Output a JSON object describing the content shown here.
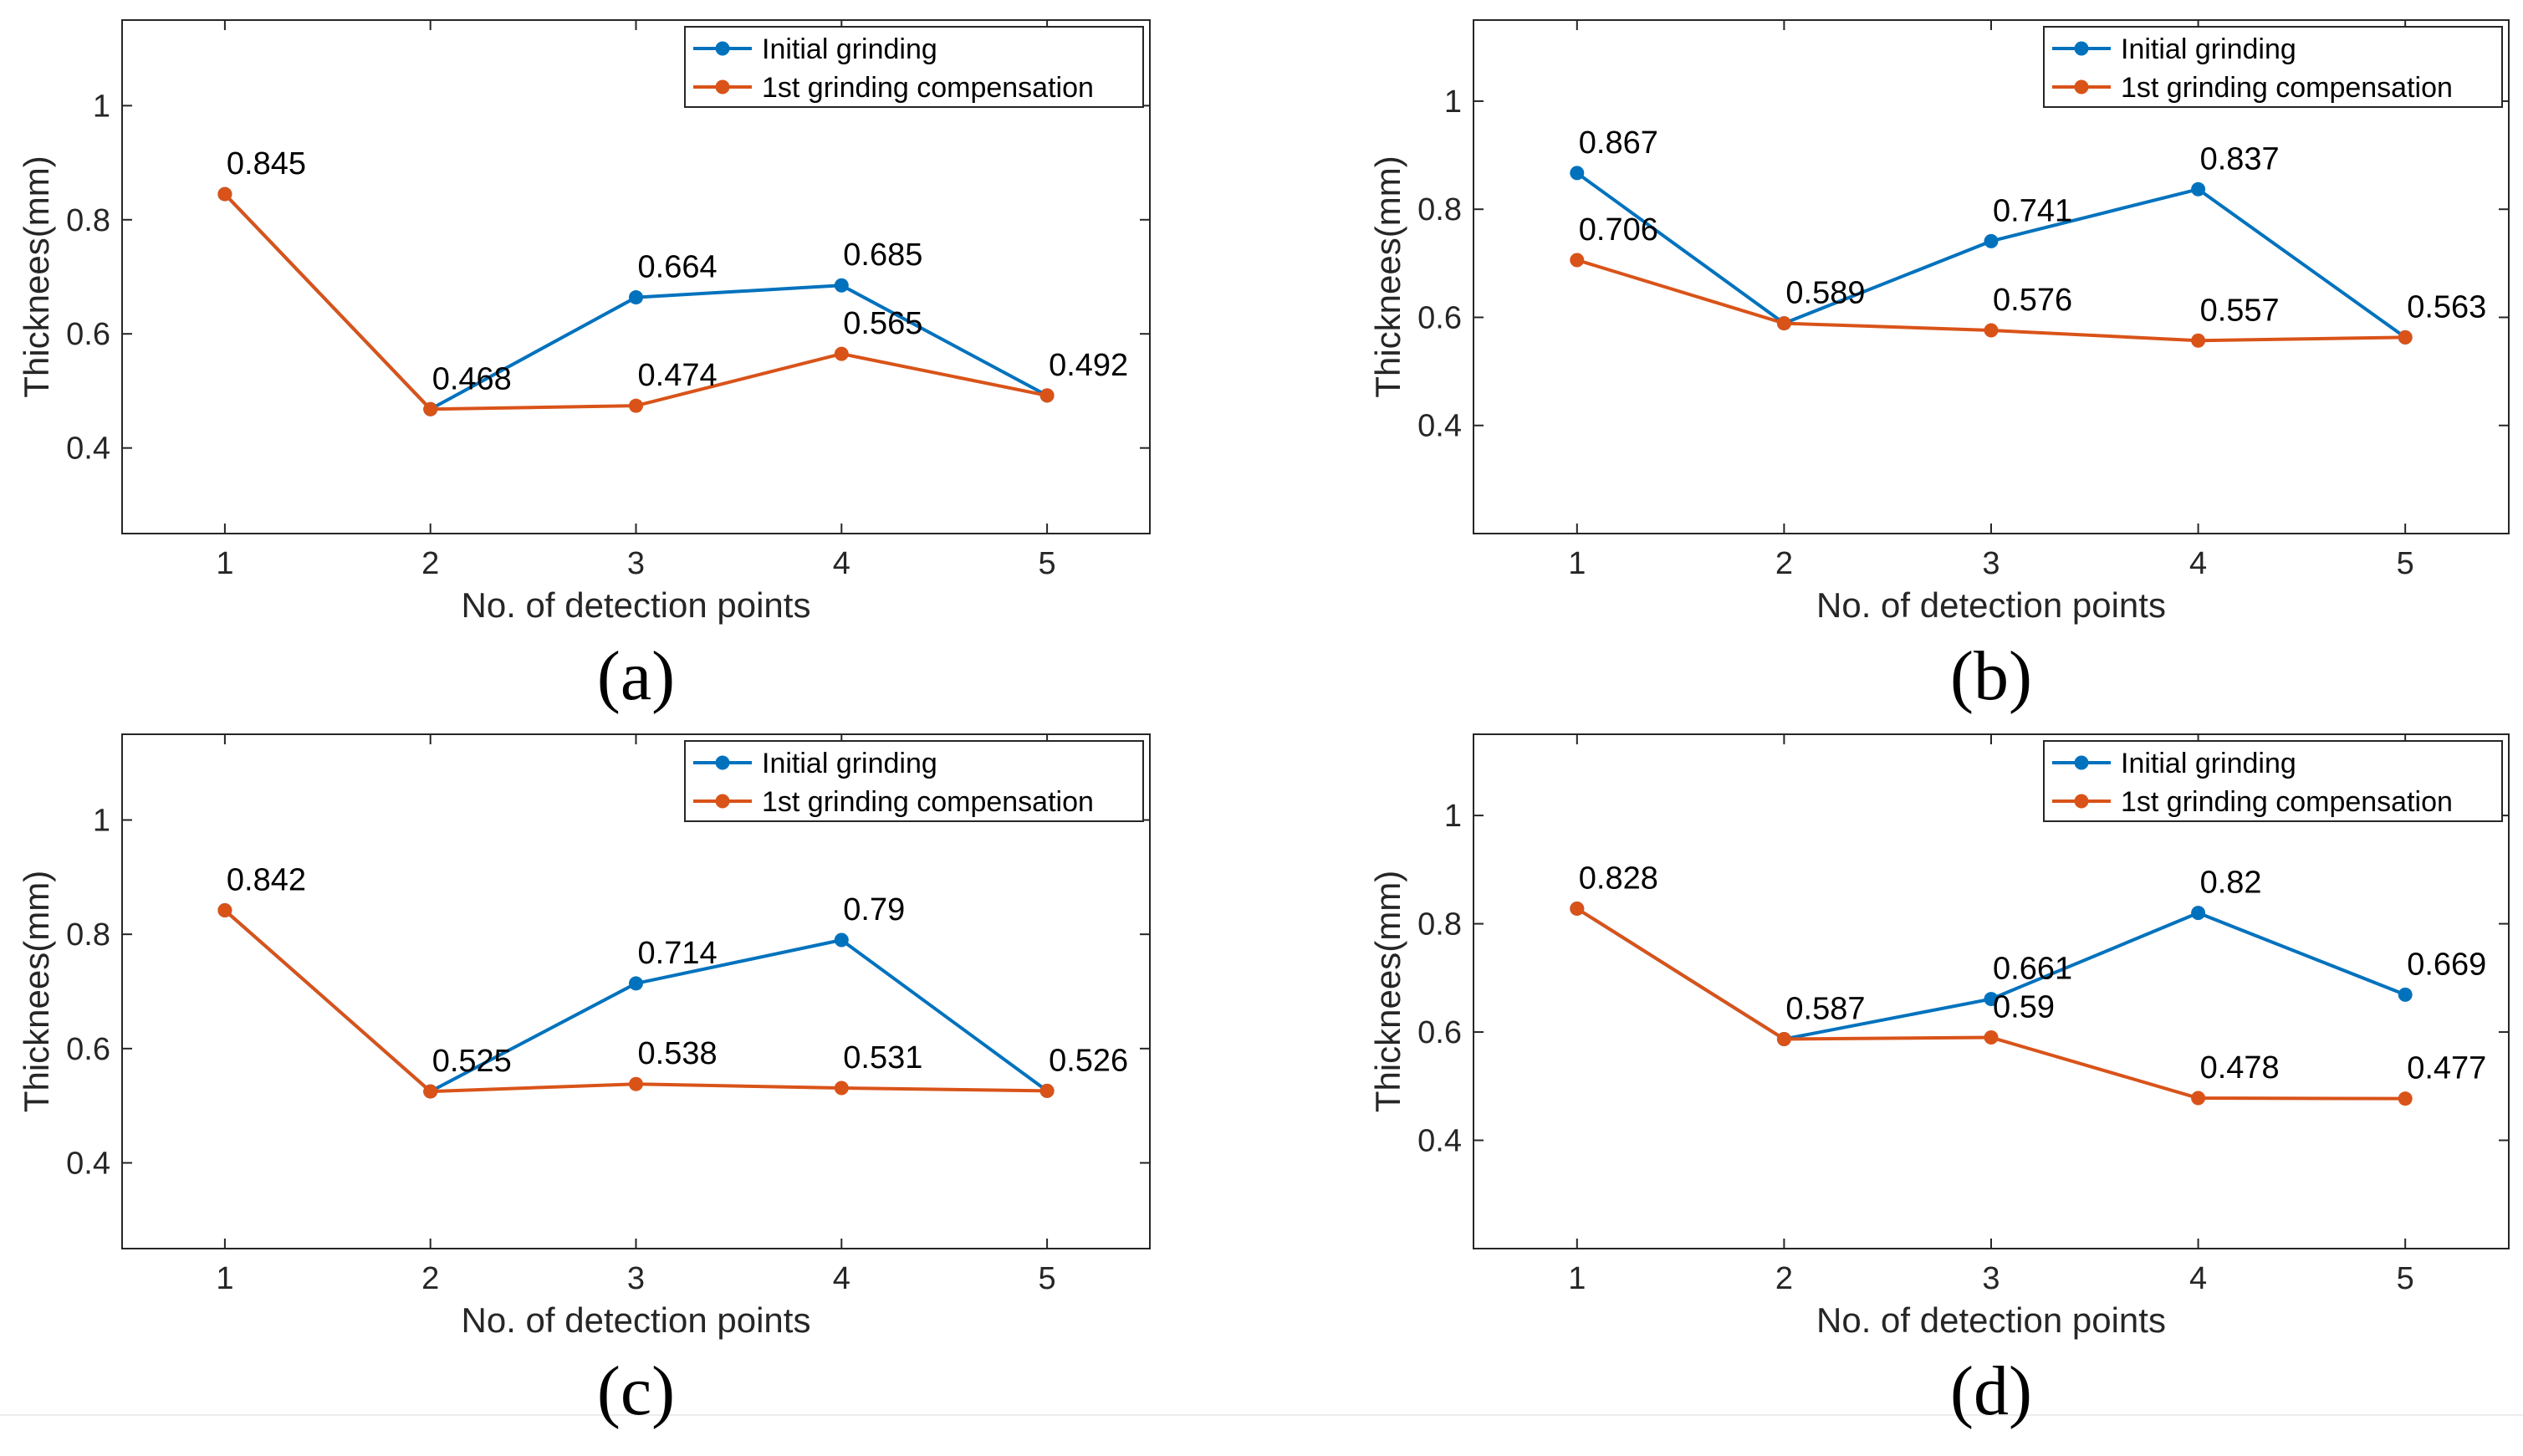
{
  "chart_data": [
    {
      "type": "line",
      "panel_label": "(a)",
      "xlabel": "No. of detection points",
      "ylabel": "Thicknees(mm)",
      "categories": [
        "1",
        "2",
        "3",
        "4",
        "5"
      ],
      "yticks": [
        "0.4",
        "0.6",
        "0.8",
        "1"
      ],
      "ylim": [
        0.25,
        1.15
      ],
      "xlim": [
        0.5,
        5.5
      ],
      "legend_position": "top-right",
      "series": [
        {
          "name": "Initial grinding",
          "color": "#0072BD",
          "values": [
            0.845,
            0.468,
            0.664,
            0.685,
            0.492
          ]
        },
        {
          "name": "1st grinding compensation",
          "color": "#D95319",
          "values": [
            0.845,
            0.468,
            0.474,
            0.565,
            0.492
          ]
        }
      ],
      "data_labels": [
        {
          "text": "0.845",
          "x": 1,
          "y": 0.845
        },
        {
          "text": "0.468",
          "x": 2,
          "y": 0.468
        },
        {
          "text": "0.664",
          "x": 3,
          "y": 0.664
        },
        {
          "text": "0.474",
          "x": 3,
          "y": 0.474
        },
        {
          "text": "0.685",
          "x": 4,
          "y": 0.685
        },
        {
          "text": "0.565",
          "x": 4,
          "y": 0.565
        },
        {
          "text": "0.492",
          "x": 5,
          "y": 0.492
        }
      ]
    },
    {
      "type": "line",
      "panel_label": "(b)",
      "xlabel": "No. of detection points",
      "ylabel": "Thicknees(mm)",
      "categories": [
        "1",
        "2",
        "3",
        "4",
        "5"
      ],
      "yticks": [
        "0.4",
        "0.6",
        "0.8",
        "1"
      ],
      "ylim": [
        0.2,
        1.15
      ],
      "xlim": [
        0.5,
        5.5
      ],
      "legend_position": "top-right",
      "series": [
        {
          "name": "Initial grinding",
          "color": "#0072BD",
          "values": [
            0.867,
            0.589,
            0.741,
            0.837,
            0.563
          ]
        },
        {
          "name": "1st grinding compensation",
          "color": "#D95319",
          "values": [
            0.706,
            0.589,
            0.576,
            0.557,
            0.563
          ]
        }
      ],
      "data_labels": [
        {
          "text": "0.867",
          "x": 1,
          "y": 0.867
        },
        {
          "text": "0.706",
          "x": 1,
          "y": 0.706
        },
        {
          "text": "0.589",
          "x": 2,
          "y": 0.589
        },
        {
          "text": "0.741",
          "x": 3,
          "y": 0.741
        },
        {
          "text": "0.576",
          "x": 3,
          "y": 0.576
        },
        {
          "text": "0.837",
          "x": 4,
          "y": 0.837
        },
        {
          "text": "0.557",
          "x": 4,
          "y": 0.557
        },
        {
          "text": "0.563",
          "x": 5,
          "y": 0.563
        }
      ]
    },
    {
      "type": "line",
      "panel_label": "(c)",
      "xlabel": "No. of detection points",
      "ylabel": "Thicknees(mm)",
      "categories": [
        "1",
        "2",
        "3",
        "4",
        "5"
      ],
      "yticks": [
        "0.4",
        "0.6",
        "0.8",
        "1"
      ],
      "ylim": [
        0.25,
        1.15
      ],
      "xlim": [
        0.5,
        5.5
      ],
      "legend_position": "top-right",
      "series": [
        {
          "name": "Initial grinding",
          "color": "#0072BD",
          "values": [
            0.842,
            0.525,
            0.714,
            0.79,
            0.526
          ]
        },
        {
          "name": "1st grinding compensation",
          "color": "#D95319",
          "values": [
            0.842,
            0.525,
            0.538,
            0.531,
            0.526
          ]
        }
      ],
      "data_labels": [
        {
          "text": "0.842",
          "x": 1,
          "y": 0.842
        },
        {
          "text": "0.525",
          "x": 2,
          "y": 0.525
        },
        {
          "text": "0.714",
          "x": 3,
          "y": 0.714
        },
        {
          "text": "0.538",
          "x": 3,
          "y": 0.538
        },
        {
          "text": "0.79",
          "x": 4,
          "y": 0.79
        },
        {
          "text": "0.531",
          "x": 4,
          "y": 0.531
        },
        {
          "text": "0.526",
          "x": 5,
          "y": 0.526
        }
      ]
    },
    {
      "type": "line",
      "panel_label": "(d)",
      "xlabel": "No. of detection points",
      "ylabel": "Thicknees(mm)",
      "categories": [
        "1",
        "2",
        "3",
        "4",
        "5"
      ],
      "yticks": [
        "0.4",
        "0.6",
        "0.8",
        "1"
      ],
      "ylim": [
        0.2,
        1.15
      ],
      "xlim": [
        0.5,
        5.5
      ],
      "legend_position": "top-right",
      "series": [
        {
          "name": "Initial grinding",
          "color": "#0072BD",
          "values": [
            0.828,
            0.587,
            0.661,
            0.82,
            0.669
          ]
        },
        {
          "name": "1st grinding compensation",
          "color": "#D95319",
          "values": [
            0.828,
            0.587,
            0.59,
            0.478,
            0.477
          ]
        }
      ],
      "data_labels": [
        {
          "text": "0.828",
          "x": 1,
          "y": 0.828
        },
        {
          "text": "0.587",
          "x": 2,
          "y": 0.587
        },
        {
          "text": "0.661",
          "x": 3,
          "y": 0.661
        },
        {
          "text": "0.59",
          "x": 3,
          "y": 0.59
        },
        {
          "text": "0.82",
          "x": 4,
          "y": 0.82
        },
        {
          "text": "0.478",
          "x": 4,
          "y": 0.478
        },
        {
          "text": "0.669",
          "x": 5,
          "y": 0.669
        },
        {
          "text": "0.477",
          "x": 5,
          "y": 0.477
        }
      ]
    }
  ]
}
